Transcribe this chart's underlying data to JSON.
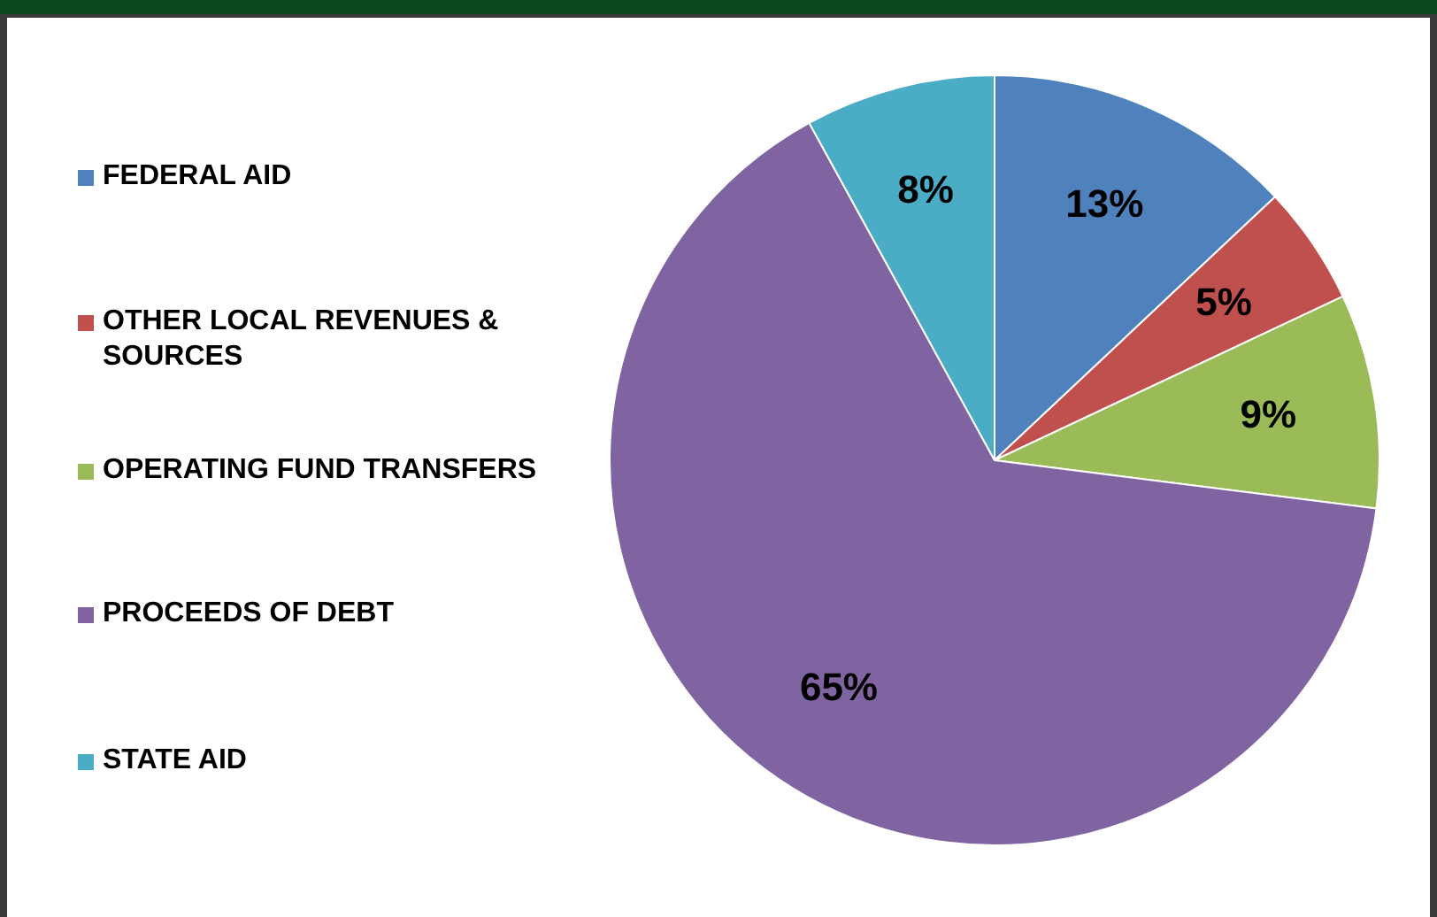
{
  "chart_data": {
    "type": "pie",
    "categories": [
      "FEDERAL AID",
      "OTHER LOCAL REVENUES & SOURCES",
      "OPERATING FUND TRANSFERS",
      "PROCEEDS OF DEBT",
      "STATE AID"
    ],
    "values": [
      13,
      5,
      9,
      65,
      8
    ],
    "colors": [
      "#4f81bd",
      "#c0504d",
      "#9bbb59",
      "#8064a2",
      "#4bacc6"
    ],
    "value_labels": [
      "13%",
      "5%",
      "9%",
      "65%",
      "8%"
    ],
    "legend": "left"
  }
}
